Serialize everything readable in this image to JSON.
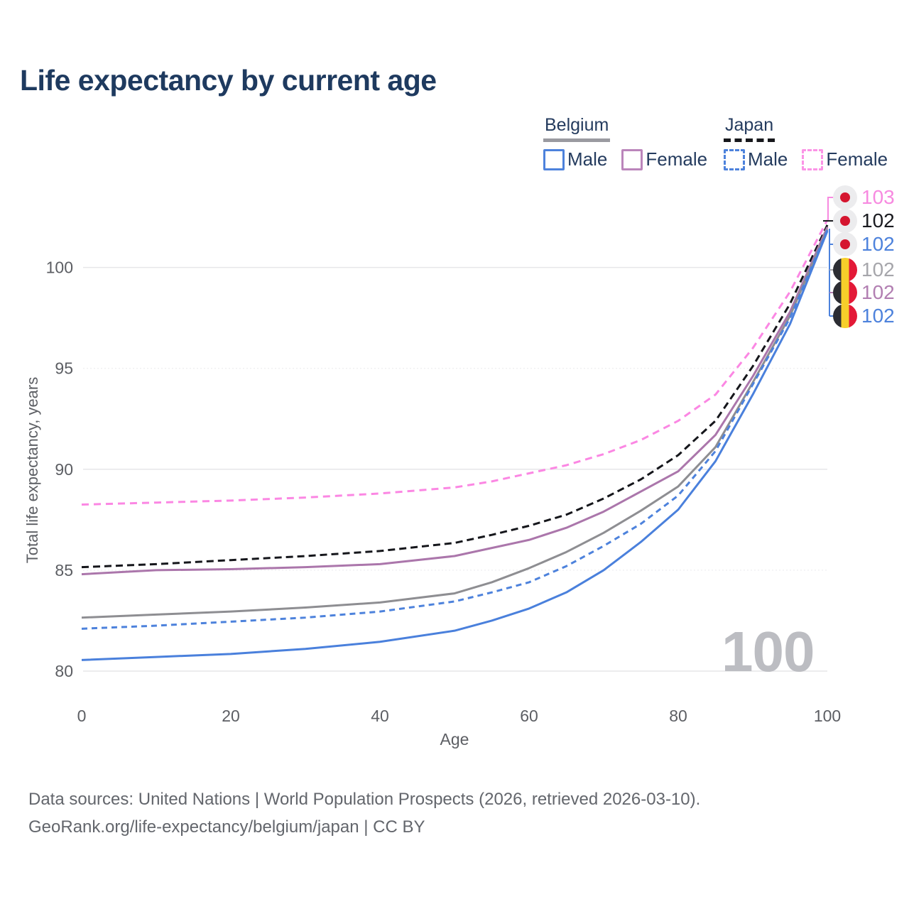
{
  "title": "Life expectancy by current age",
  "legend": {
    "groups": [
      {
        "id": "belgium",
        "label": "Belgium",
        "underline": "solid-gray",
        "items": [
          {
            "label": "Male",
            "color": "#4d82dc",
            "style": "solid"
          },
          {
            "label": "Female",
            "color": "#bb85bb",
            "style": "solid"
          }
        ]
      },
      {
        "id": "japan",
        "label": "Japan",
        "underline": "dashed-black",
        "items": [
          {
            "label": "Male",
            "color": "#4d82dc",
            "style": "dashed"
          },
          {
            "label": "Female",
            "color": "#fb94e6",
            "style": "dashed"
          }
        ]
      }
    ]
  },
  "watermark_age": "100",
  "end_labels": [
    {
      "flag": "japan",
      "value": "103",
      "color": "#f78ae0"
    },
    {
      "flag": "japan",
      "value": "102",
      "color": "#1a1b20"
    },
    {
      "flag": "japan",
      "value": "102",
      "color": "#4d82dc"
    },
    {
      "flag": "belgium",
      "value": "102",
      "color": "#a6a6ab"
    },
    {
      "flag": "belgium",
      "value": "102",
      "color": "#b27fb2"
    },
    {
      "flag": "belgium",
      "value": "102",
      "color": "#4d82dc"
    }
  ],
  "footer": {
    "line1": "Data sources: United Nations | World Population Prospects (2026, retrieved 2026-03-10).",
    "line2": "GeoRank.org/life-expectancy/belgium/japan | CC BY"
  },
  "chart_data": {
    "type": "line",
    "title": "Life expectancy by current age",
    "xlabel": "Age",
    "ylabel": "Total life expectancy, years",
    "xlim": [
      0,
      100
    ],
    "ylim": [
      79,
      103
    ],
    "xticks": [
      0,
      20,
      40,
      60,
      80,
      100
    ],
    "yticks": [
      80,
      85,
      90,
      95,
      100
    ],
    "grid": "horizontal only, solid at 80/90/100, dotted at 85/95",
    "legend_position": "top-right",
    "ages": [
      0,
      10,
      20,
      30,
      40,
      50,
      55,
      60,
      65,
      70,
      75,
      80,
      85,
      90,
      95,
      100
    ],
    "series": [
      {
        "id": "japan-female",
        "name": "Japan Female",
        "color": "#fb87e3",
        "dash": "10 7",
        "values": [
          88.25,
          88.35,
          88.45,
          88.6,
          88.8,
          89.1,
          89.4,
          89.8,
          90.2,
          90.75,
          91.45,
          92.4,
          93.7,
          96.0,
          98.8,
          102.35
        ]
      },
      {
        "id": "japan-both",
        "name": "Japan (both sexes)",
        "color": "#15161b",
        "dash": "10 6",
        "values": [
          85.15,
          85.3,
          85.5,
          85.7,
          85.95,
          86.35,
          86.75,
          87.2,
          87.75,
          88.55,
          89.5,
          90.7,
          92.4,
          95.1,
          98.2,
          102.1
        ]
      },
      {
        "id": "belgium-female",
        "name": "Belgium Female",
        "color": "#ab76ab",
        "dash": null,
        "values": [
          84.8,
          85.0,
          85.05,
          85.15,
          85.3,
          85.7,
          86.1,
          86.5,
          87.1,
          87.9,
          88.9,
          89.9,
          91.7,
          94.6,
          97.8,
          102.0
        ]
      },
      {
        "id": "belgium-both",
        "name": "Belgium (both sexes)",
        "color": "#8e8e92",
        "dash": null,
        "values": [
          82.65,
          82.8,
          82.95,
          83.15,
          83.4,
          83.85,
          84.4,
          85.1,
          85.9,
          86.85,
          87.95,
          89.15,
          91.1,
          94.3,
          97.6,
          101.9
        ]
      },
      {
        "id": "japan-male",
        "name": "Japan Male",
        "color": "#4d82dc",
        "dash": "8 6",
        "values": [
          82.1,
          82.25,
          82.45,
          82.65,
          82.95,
          83.45,
          83.9,
          84.4,
          85.2,
          86.2,
          87.3,
          88.7,
          90.9,
          94.2,
          97.5,
          101.85
        ]
      },
      {
        "id": "belgium-male",
        "name": "Belgium Male",
        "color": "#4a80dc",
        "dash": null,
        "values": [
          80.55,
          80.7,
          80.85,
          81.1,
          81.45,
          82.0,
          82.5,
          83.1,
          83.9,
          85.0,
          86.4,
          88.0,
          90.4,
          93.7,
          97.2,
          101.8
        ]
      }
    ]
  }
}
